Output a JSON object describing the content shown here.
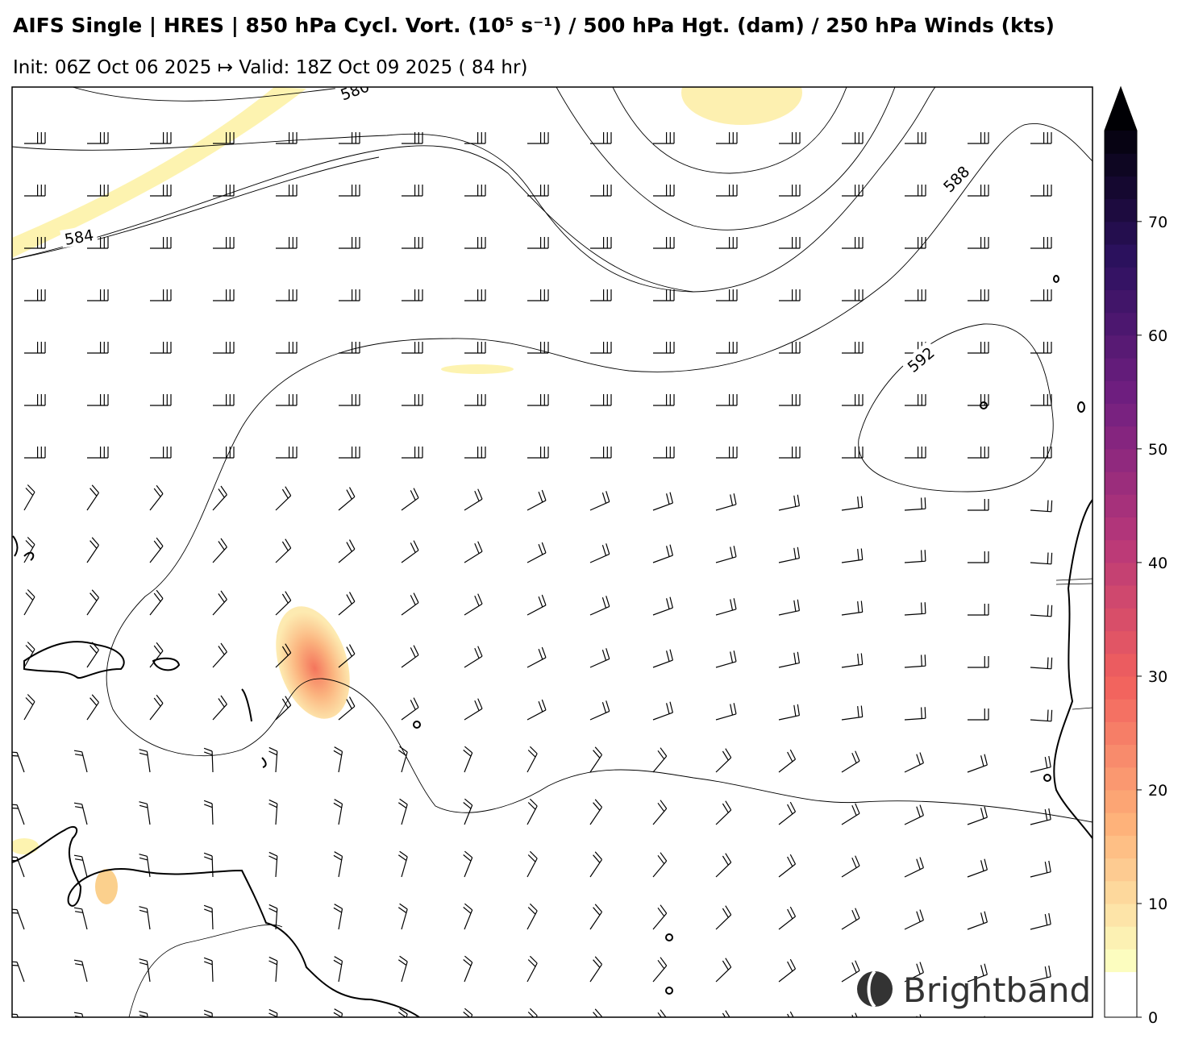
{
  "header": {
    "title": "AIFS Single | HRES | 850 hPa Cycl. Vort. (10⁵ s⁻¹) / 500 hPa Hgt. (dam) / 250 hPa Winds (kts)",
    "subtitle": "Init: 06Z Oct 06 2025 ↦ Valid: 18Z Oct 09 2025 ( 84 hr)"
  },
  "contour_labels": [
    580,
    584,
    588,
    592
  ],
  "colorbar": {
    "lim": [
      0,
      78
    ],
    "ticks": [
      0,
      10,
      20,
      30,
      40,
      50,
      60,
      70
    ],
    "levels": {
      "start": 4,
      "step": 2
    },
    "colormap": "magma_r",
    "extend": "max"
  },
  "logo": {
    "text": "Brightband"
  }
}
